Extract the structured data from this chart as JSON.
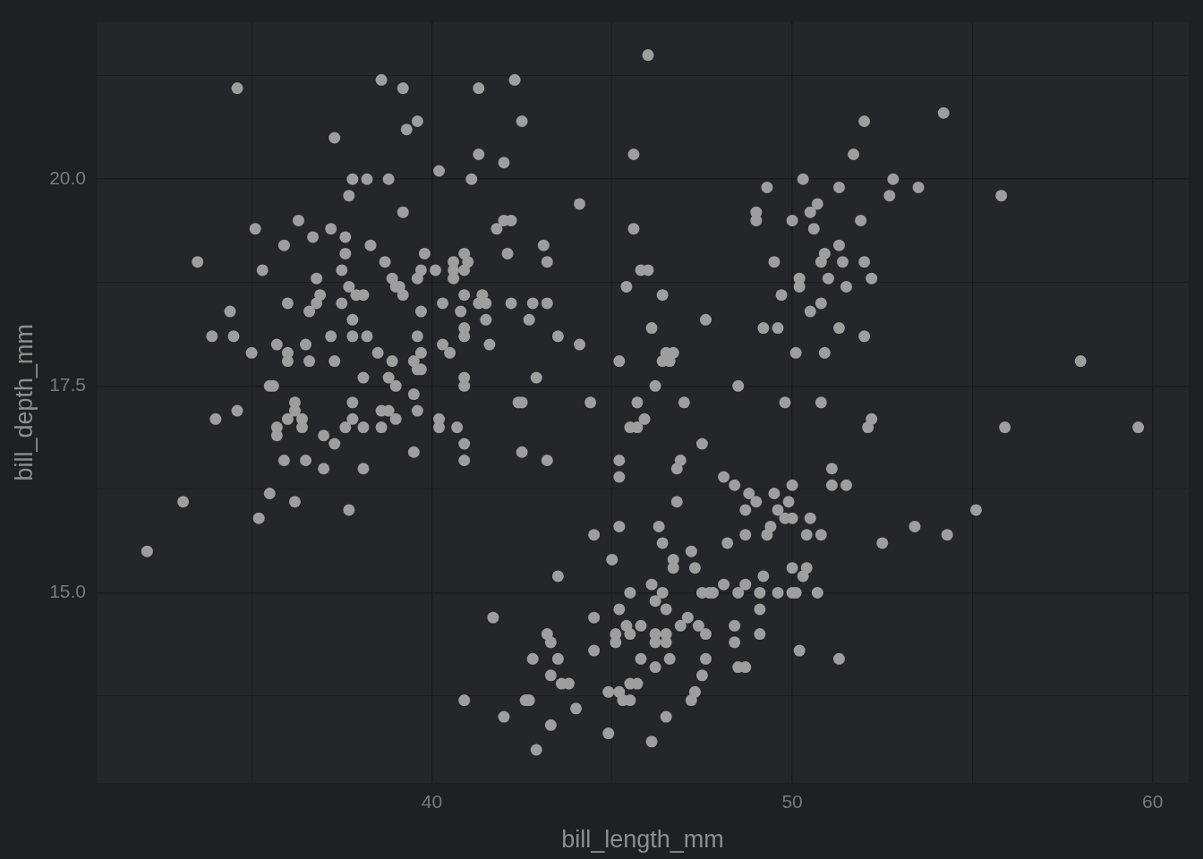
{
  "chart_data": {
    "type": "scatter",
    "xlabel": "bill_length_mm",
    "ylabel": "bill_depth_mm",
    "xlim": [
      30.7,
      61.0
    ],
    "ylim": [
      12.7,
      21.9
    ],
    "xticks": [
      {
        "value": 35,
        "label": null
      },
      40,
      {
        "value": 45,
        "label": null
      },
      50,
      {
        "value": 55,
        "label": null
      },
      60
    ],
    "yticks": [
      {
        "value": 13.75,
        "label": null
      },
      {
        "value": 15,
        "label": "15.0"
      },
      {
        "value": 16.25,
        "label": null
      },
      {
        "value": 17.5,
        "label": "17.5"
      },
      {
        "value": 18.75,
        "label": null
      },
      {
        "value": 20,
        "label": "20.0"
      },
      {
        "value": 21.25,
        "label": null
      }
    ],
    "grid": true,
    "marker": "circle",
    "series": [
      {
        "color": "#9e9e9e",
        "x": [
          46.0,
          38.6,
          42.3,
          34.6,
          39.2,
          41.3,
          54.2,
          39.6,
          42.5,
          52.0,
          39.3,
          37.3,
          41.3,
          45.6,
          51.7,
          42.0,
          40.2,
          37.8,
          38.2,
          38.8,
          41.1,
          50.3,
          52.8,
          49.3,
          51.3,
          53.5,
          55.8,
          37.7,
          52.7,
          50.7,
          44.1,
          39.2,
          49.0,
          50.5,
          36.3,
          49.0,
          50.0,
          51.9,
          42.0,
          42.2,
          35.1,
          37.2,
          41.8,
          45.6,
          50.6,
          37.6,
          36.7,
          35.9,
          38.3,
          43.1,
          51.3,
          37.6,
          39.8,
          40.9,
          42.1,
          50.9,
          49.5,
          33.5,
          38.7,
          40.6,
          41.0,
          43.2,
          50.8,
          51.4,
          52.0,
          35.3,
          37.5,
          39.7,
          40.1,
          40.6,
          40.9,
          45.8,
          46.0,
          36.8,
          38.9,
          39.6,
          40.6,
          50.2,
          51.0,
          52.2,
          37.7,
          39.0,
          39.1,
          45.4,
          50.2,
          51.5,
          36.9,
          37.9,
          38.1,
          39.2,
          40.9,
          41.4,
          46.4,
          49.7,
          36.0,
          36.8,
          37.5,
          40.3,
          41.3,
          41.5,
          42.2,
          42.8,
          43.2,
          50.8,
          34.4,
          36.6,
          39.7,
          40.8,
          50.5,
          37.8,
          41.5,
          42.7,
          47.6,
          40.9,
          46.1,
          49.2,
          49.6,
          51.3,
          33.9,
          34.5,
          37.2,
          37.8,
          38.2,
          39.6,
          40.9,
          43.5,
          52.0,
          35.7,
          36.5,
          40.3,
          41.6,
          44.1,
          35.0,
          36.0,
          38.5,
          39.7,
          40.5,
          46.5,
          46.7,
          50.1,
          50.9,
          36.0,
          36.6,
          37.3,
          38.9,
          39.5,
          45.2,
          46.4,
          46.6,
          58.0,
          39.6,
          39.7,
          38.1,
          38.8,
          40.9,
          42.9,
          35.5,
          35.6,
          39.0,
          40.9,
          46.2,
          48.5,
          39.5,
          36.2,
          37.8,
          42.4,
          42.5,
          44.4,
          45.7,
          47.0,
          49.8,
          50.8,
          34.6,
          36.2,
          38.6,
          38.8,
          39.6,
          34.0,
          36.0,
          36.4,
          37.8,
          39.0,
          40.2,
          45.9,
          52.2,
          35.7,
          36.4,
          37.6,
          38.1,
          38.6,
          40.2,
          40.7,
          45.5,
          45.7,
          52.1,
          55.9,
          59.6,
          35.7,
          37.0,
          37.3,
          40.9,
          47.5,
          39.5,
          42.5,
          35.9,
          36.5,
          40.9,
          43.2,
          45.2,
          46.9,
          37.0,
          38.1,
          46.8,
          51.1,
          45.2,
          48.1,
          48.4,
          50.0,
          51.1,
          51.5,
          35.5,
          48.8,
          49.5,
          33.1,
          36.2,
          46.8,
          49.0,
          49.9,
          37.7,
          48.7,
          49.6,
          55.1,
          35.2,
          49.8,
          50.0,
          50.5,
          45.2,
          46.3,
          49.4,
          53.4,
          44.5,
          48.7,
          49.3,
          50.4,
          50.8,
          54.3,
          46.4,
          48.2,
          52.5,
          32.1,
          47.2,
          45.0,
          46.7,
          46.7,
          47.3,
          50.0,
          50.4,
          43.5,
          49.2,
          50.3,
          46.1,
          48.1,
          48.7,
          45.5,
          46.4,
          47.5,
          47.7,
          47.8,
          48.5,
          49.1,
          49.6,
          50.0,
          50.1,
          50.7,
          46.2,
          45.2,
          46.5,
          49.1,
          41.7,
          44.5,
          47.1,
          45.4,
          45.8,
          46.9,
          47.4,
          48.4,
          43.2,
          45.1,
          45.5,
          46.2,
          46.5,
          47.6,
          49.1,
          43.3,
          45.1,
          46.2,
          46.5,
          48.4,
          44.5,
          50.2,
          42.8,
          43.5,
          45.8,
          46.6,
          47.6,
          51.3,
          46.2,
          48.5,
          48.7,
          43.3,
          47.5,
          43.6,
          43.8,
          45.5,
          45.7,
          44.9,
          45.2,
          47.3,
          40.9,
          42.6,
          42.7,
          45.3,
          45.5,
          47.2,
          44.0,
          42.0,
          46.5,
          43.3,
          44.9,
          46.1,
          42.9
        ],
        "values": [
          21.5,
          21.2,
          21.2,
          21.1,
          21.1,
          21.1,
          20.8,
          20.7,
          20.7,
          20.7,
          20.6,
          20.5,
          20.3,
          20.3,
          20.3,
          20.2,
          20.1,
          20.0,
          20.0,
          20.0,
          20.0,
          20.0,
          20.0,
          19.9,
          19.9,
          19.9,
          19.8,
          19.8,
          19.8,
          19.7,
          19.7,
          19.6,
          19.6,
          19.6,
          19.5,
          19.5,
          19.5,
          19.5,
          19.5,
          19.5,
          19.4,
          19.4,
          19.4,
          19.4,
          19.4,
          19.3,
          19.3,
          19.2,
          19.2,
          19.2,
          19.2,
          19.1,
          19.1,
          19.1,
          19.1,
          19.1,
          19.0,
          19.0,
          19.0,
          19.0,
          19.0,
          19.0,
          19.0,
          19.0,
          19.0,
          18.9,
          18.9,
          18.9,
          18.9,
          18.9,
          18.9,
          18.9,
          18.9,
          18.8,
          18.8,
          18.8,
          18.8,
          18.8,
          18.8,
          18.8,
          18.7,
          18.7,
          18.7,
          18.7,
          18.7,
          18.7,
          18.6,
          18.6,
          18.6,
          18.6,
          18.6,
          18.6,
          18.6,
          18.6,
          18.5,
          18.5,
          18.5,
          18.5,
          18.5,
          18.5,
          18.5,
          18.5,
          18.5,
          18.5,
          18.4,
          18.4,
          18.4,
          18.4,
          18.4,
          18.3,
          18.3,
          18.3,
          18.3,
          18.2,
          18.2,
          18.2,
          18.2,
          18.2,
          18.1,
          18.1,
          18.1,
          18.1,
          18.1,
          18.1,
          18.1,
          18.1,
          18.1,
          18.0,
          18.0,
          18.0,
          18.0,
          18.0,
          17.9,
          17.9,
          17.9,
          17.9,
          17.9,
          17.9,
          17.9,
          17.9,
          17.9,
          17.8,
          17.8,
          17.8,
          17.8,
          17.8,
          17.8,
          17.8,
          17.8,
          17.8,
          17.7,
          17.7,
          17.6,
          17.6,
          17.6,
          17.6,
          17.5,
          17.5,
          17.5,
          17.5,
          17.5,
          17.5,
          17.4,
          17.3,
          17.3,
          17.3,
          17.3,
          17.3,
          17.3,
          17.3,
          17.3,
          17.3,
          17.2,
          17.2,
          17.2,
          17.2,
          17.2,
          17.1,
          17.1,
          17.1,
          17.1,
          17.1,
          17.1,
          17.1,
          17.1,
          17.0,
          17.0,
          17.0,
          17.0,
          17.0,
          17.0,
          17.0,
          17.0,
          17.0,
          17.0,
          17.0,
          17.0,
          16.9,
          16.9,
          16.8,
          16.8,
          16.8,
          16.7,
          16.7,
          16.6,
          16.6,
          16.6,
          16.6,
          16.6,
          16.6,
          16.5,
          16.5,
          16.5,
          16.5,
          16.4,
          16.4,
          16.3,
          16.3,
          16.3,
          16.3,
          16.2,
          16.2,
          16.2,
          16.1,
          16.1,
          16.1,
          16.1,
          16.1,
          16.0,
          16.0,
          16.0,
          16.0,
          15.9,
          15.9,
          15.9,
          15.9,
          15.8,
          15.8,
          15.8,
          15.8,
          15.7,
          15.7,
          15.7,
          15.7,
          15.7,
          15.7,
          15.6,
          15.6,
          15.6,
          15.5,
          15.5,
          15.4,
          15.4,
          15.3,
          15.3,
          15.3,
          15.3,
          15.2,
          15.2,
          15.2,
          15.1,
          15.1,
          15.1,
          15.0,
          15.0,
          15.0,
          15.0,
          15.0,
          15.0,
          15.0,
          15.0,
          15.0,
          15.0,
          15.0,
          14.9,
          14.8,
          14.8,
          14.8,
          14.7,
          14.7,
          14.7,
          14.6,
          14.6,
          14.6,
          14.6,
          14.6,
          14.5,
          14.5,
          14.5,
          14.5,
          14.5,
          14.5,
          14.5,
          14.4,
          14.4,
          14.4,
          14.4,
          14.4,
          14.3,
          14.3,
          14.2,
          14.2,
          14.2,
          14.2,
          14.2,
          14.2,
          14.1,
          14.1,
          14.1,
          14.0,
          14.0,
          13.9,
          13.9,
          13.9,
          13.9,
          13.8,
          13.8,
          13.8,
          13.7,
          13.7,
          13.7,
          13.7,
          13.7,
          13.7,
          13.6,
          13.5,
          13.5,
          13.4,
          13.3,
          13.2,
          13.1
        ]
      }
    ]
  }
}
